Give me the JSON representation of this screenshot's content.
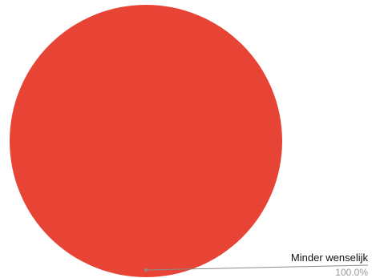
{
  "chart_data": {
    "type": "pie",
    "title": "",
    "slices": [
      {
        "label": "Minder wenselijk",
        "value": 100,
        "percent_label": "100.0%",
        "color": "#e84436"
      }
    ],
    "legend": "none",
    "leader_line_color": "#8a8a8a"
  }
}
